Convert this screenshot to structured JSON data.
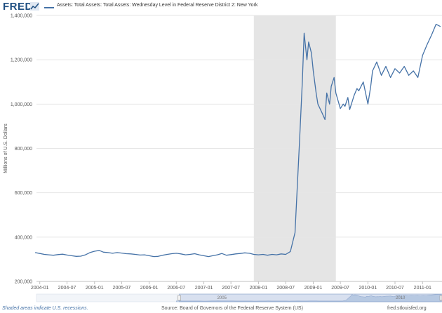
{
  "header": {
    "logo_text": "FRED",
    "logo_icon": "chart-line-icon",
    "series_title": "Assets: Total Assets: Total Assets: Wednesday Level in Federal Reserve District 2: New York"
  },
  "footer": {
    "recession_note": "Shaded areas indicate U.S. recessions.",
    "source": "Source: Board of Governors of the Federal Reserve System (US)",
    "site": "fred.stlouisfed.org"
  },
  "colors": {
    "line": "#4572a7",
    "recession": "#e5e5e5",
    "axis_text": "#555555",
    "navigator_bg": "#cad8ea"
  },
  "chart_data": {
    "type": "line",
    "title": "",
    "xlabel": "",
    "ylabel": "Millions of U.S. Dollars",
    "ylim": [
      200000,
      1400000
    ],
    "xlim": [
      "2003-12-10",
      "2011-05-11"
    ],
    "grid": true,
    "legend": "top-left",
    "yticks": [
      200000,
      400000,
      600000,
      800000,
      1000000,
      1200000,
      1400000
    ],
    "ytick_labels": [
      "200,000",
      "400,000",
      "600,000",
      "800,000",
      "1,000,000",
      "1,200,000",
      "1,400,000"
    ],
    "xticks": [
      "2004-01",
      "2004-07",
      "2005-01",
      "2005-07",
      "2006-01",
      "2006-07",
      "2007-01",
      "2007-07",
      "2008-01",
      "2008-07",
      "2009-01",
      "2009-07",
      "2010-01",
      "2010-07",
      "2011-01"
    ],
    "recessions": [
      {
        "start": "2007-12",
        "end": "2009-06"
      }
    ],
    "navigator_labels": [
      "2005",
      "2010"
    ],
    "series": [
      {
        "name": "Assets: Total Assets: Total Assets: Wednesday Level in Federal Reserve District 2: New York",
        "color": "#4572a7",
        "points": [
          [
            "2003-12",
            330000
          ],
          [
            "2004-01",
            326000
          ],
          [
            "2004-02",
            322000
          ],
          [
            "2004-03",
            320000
          ],
          [
            "2004-04",
            318000
          ],
          [
            "2004-05",
            321000
          ],
          [
            "2004-06",
            323000
          ],
          [
            "2004-07",
            319000
          ],
          [
            "2004-08",
            316000
          ],
          [
            "2004-09",
            313000
          ],
          [
            "2004-10",
            314000
          ],
          [
            "2004-11",
            320000
          ],
          [
            "2004-12",
            330000
          ],
          [
            "2005-01",
            336000
          ],
          [
            "2005-02",
            340000
          ],
          [
            "2005-03",
            332000
          ],
          [
            "2005-04",
            330000
          ],
          [
            "2005-05",
            327000
          ],
          [
            "2005-06",
            330000
          ],
          [
            "2005-07",
            328000
          ],
          [
            "2005-08",
            325000
          ],
          [
            "2005-09",
            324000
          ],
          [
            "2005-10",
            322000
          ],
          [
            "2005-11",
            319000
          ],
          [
            "2005-12",
            320000
          ],
          [
            "2006-01",
            316000
          ],
          [
            "2006-02",
            312000
          ],
          [
            "2006-03",
            313000
          ],
          [
            "2006-04",
            318000
          ],
          [
            "2006-05",
            322000
          ],
          [
            "2006-06",
            325000
          ],
          [
            "2006-07",
            327000
          ],
          [
            "2006-08",
            324000
          ],
          [
            "2006-09",
            320000
          ],
          [
            "2006-10",
            322000
          ],
          [
            "2006-11",
            325000
          ],
          [
            "2006-12",
            320000
          ],
          [
            "2007-01",
            316000
          ],
          [
            "2007-02",
            312000
          ],
          [
            "2007-03",
            316000
          ],
          [
            "2007-04",
            320000
          ],
          [
            "2007-05",
            326000
          ],
          [
            "2007-06",
            318000
          ],
          [
            "2007-07",
            321000
          ],
          [
            "2007-08",
            324000
          ],
          [
            "2007-09",
            326000
          ],
          [
            "2007-10",
            329000
          ],
          [
            "2007-11",
            327000
          ],
          [
            "2007-12",
            322000
          ],
          [
            "2008-01",
            320000
          ],
          [
            "2008-02",
            322000
          ],
          [
            "2008-03",
            318000
          ],
          [
            "2008-04",
            322000
          ],
          [
            "2008-05",
            320000
          ],
          [
            "2008-06",
            324000
          ],
          [
            "2008-07",
            322000
          ],
          [
            "2008-08",
            335000
          ],
          [
            "2008-09",
            420000
          ],
          [
            "2008-10",
            830000
          ],
          [
            "2008-10-20",
            1100000
          ],
          [
            "2008-11",
            1320000
          ],
          [
            "2008-11-20",
            1200000
          ],
          [
            "2008-12",
            1280000
          ],
          [
            "2008-12-20",
            1230000
          ],
          [
            "2009-01",
            1150000
          ],
          [
            "2009-01-20",
            1050000
          ],
          [
            "2009-02",
            1000000
          ],
          [
            "2009-03",
            960000
          ],
          [
            "2009-03-20",
            930000
          ],
          [
            "2009-04",
            1050000
          ],
          [
            "2009-04-20",
            1000000
          ],
          [
            "2009-05",
            1080000
          ],
          [
            "2009-05-20",
            1120000
          ],
          [
            "2009-06",
            1050000
          ],
          [
            "2009-07",
            980000
          ],
          [
            "2009-07-20",
            1000000
          ],
          [
            "2009-08",
            990000
          ],
          [
            "2009-08-20",
            1030000
          ],
          [
            "2009-09",
            975000
          ],
          [
            "2009-10",
            1040000
          ],
          [
            "2009-10-20",
            1070000
          ],
          [
            "2009-11",
            1060000
          ],
          [
            "2009-12",
            1100000
          ],
          [
            "2010-01",
            1000000
          ],
          [
            "2010-01-20",
            1080000
          ],
          [
            "2010-02",
            1150000
          ],
          [
            "2010-03",
            1190000
          ],
          [
            "2010-04",
            1130000
          ],
          [
            "2010-05",
            1170000
          ],
          [
            "2010-06",
            1120000
          ],
          [
            "2010-07",
            1160000
          ],
          [
            "2010-08",
            1140000
          ],
          [
            "2010-09",
            1170000
          ],
          [
            "2010-10",
            1130000
          ],
          [
            "2010-11",
            1150000
          ],
          [
            "2010-12",
            1120000
          ],
          [
            "2011-01",
            1220000
          ],
          [
            "2011-02",
            1270000
          ],
          [
            "2011-03",
            1310000
          ],
          [
            "2011-04",
            1360000
          ],
          [
            "2011-05",
            1350000
          ]
        ]
      }
    ]
  }
}
